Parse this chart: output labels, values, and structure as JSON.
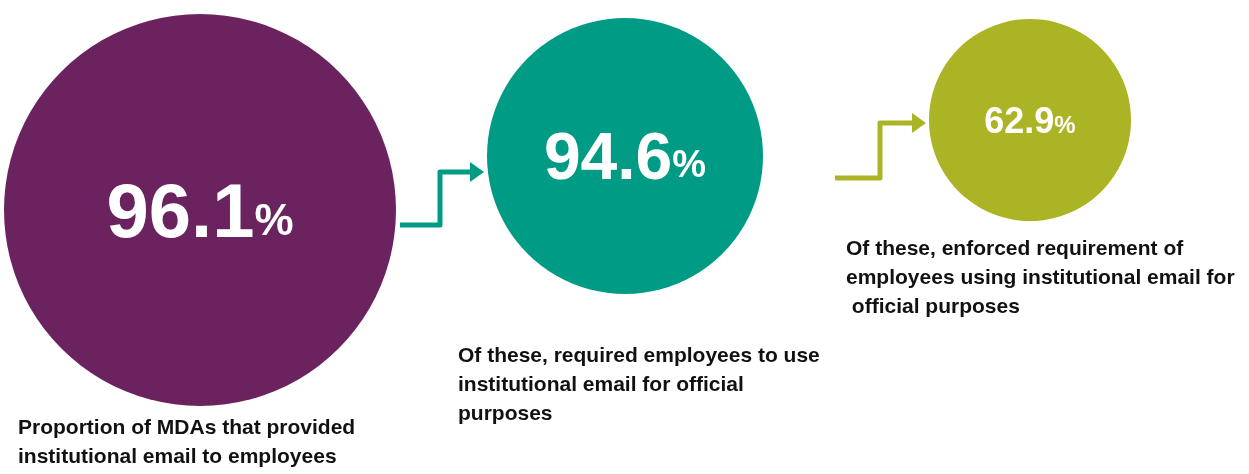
{
  "chart_data": {
    "type": "other",
    "categories": [
      "Proportion of MDAs that provided institutional email to employees",
      "Of these, required employees to use institutional email for official purposes",
      "Of these, enforced requirement of employees using institutional email for official purposes"
    ],
    "values": [
      96.1,
      94.6,
      62.9
    ],
    "value_labels": [
      "96.1%",
      "94.6%",
      "62.9%"
    ],
    "colors": [
      "#6b2360",
      "#009b84",
      "#abb424"
    ]
  }
}
